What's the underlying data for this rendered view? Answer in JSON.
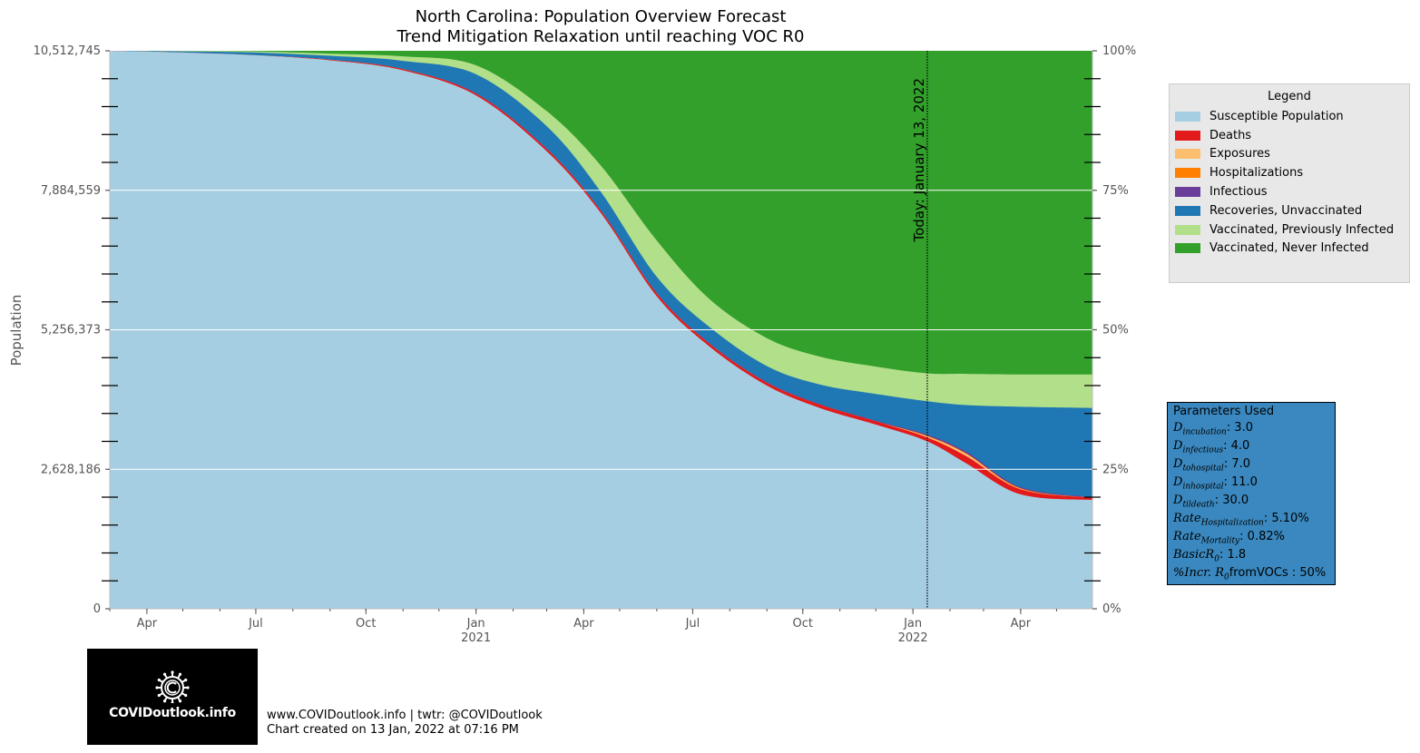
{
  "chart_data": {
    "type": "area",
    "title": "North Carolina: Population Overview Forecast",
    "subtitle": "Trend Mitigation Relaxation until reaching VOC R0",
    "ylabel": "Population",
    "ylim": [
      0,
      10512745
    ],
    "y_ticks": [
      "10,512,745",
      "7,884,559",
      "5,256,373",
      "2,628,186",
      "0"
    ],
    "y_ticks_right": [
      "100%",
      "75%",
      "50%",
      "25%",
      "0%"
    ],
    "x_ticks": [
      {
        "label": "Apr",
        "year": ""
      },
      {
        "label": "Jul",
        "year": ""
      },
      {
        "label": "Oct",
        "year": ""
      },
      {
        "label": "Jan",
        "year": "2021"
      },
      {
        "label": "Apr",
        "year": ""
      },
      {
        "label": "Jul",
        "year": ""
      },
      {
        "label": "Oct",
        "year": ""
      },
      {
        "label": "Jan",
        "year": "2022"
      },
      {
        "label": "Apr",
        "year": ""
      }
    ],
    "today_label": "Today: January 13, 2022",
    "grid": true,
    "legend_position": "right",
    "series_units": "percent of population (cumulative band tops)",
    "x": [
      "2020-03-01",
      "2020-05-01",
      "2020-07-01",
      "2020-09-01",
      "2020-11-01",
      "2021-01-01",
      "2021-03-01",
      "2021-04-15",
      "2021-06-01",
      "2021-07-15",
      "2021-09-01",
      "2021-10-15",
      "2021-12-01",
      "2022-01-13",
      "2022-02-15",
      "2022-04-01",
      "2022-05-31"
    ],
    "series": [
      {
        "name": "Susceptible Population",
        "color": "#a6cee3",
        "values": [
          100,
          99.7,
          99.2,
          98.3,
          96.5,
          92,
          82,
          71,
          56,
          47,
          40,
          36,
          33,
          30,
          26,
          20.5,
          19.5
        ]
      },
      {
        "name": "Deaths",
        "color": "#e31a1c",
        "values": [
          100,
          99.7,
          99.2,
          98.4,
          96.7,
          92.3,
          82.4,
          71.4,
          56.5,
          47.5,
          40.5,
          36.6,
          33.6,
          30.7,
          27.3,
          21.4,
          19.9
        ]
      },
      {
        "name": "Exposures",
        "color": "#fdbf6f",
        "values": [
          100,
          99.7,
          99.2,
          98.4,
          96.7,
          92.3,
          82.4,
          71.4,
          56.5,
          47.5,
          40.5,
          36.6,
          33.6,
          30.9,
          27.7,
          21.5,
          19.9
        ]
      },
      {
        "name": "Hospitalizations",
        "color": "#ff7f00",
        "values": [
          100,
          99.7,
          99.2,
          98.4,
          96.7,
          92.3,
          82.4,
          71.4,
          56.5,
          47.5,
          40.5,
          36.6,
          33.6,
          31.0,
          27.8,
          21.6,
          19.9
        ]
      },
      {
        "name": "Infectious",
        "color": "#6a3d9a",
        "values": [
          100,
          99.7,
          99.2,
          98.4,
          96.7,
          92.4,
          82.5,
          71.5,
          56.6,
          47.6,
          40.6,
          36.7,
          33.7,
          31.2,
          28.1,
          21.8,
          20.0
        ]
      },
      {
        "name": "Recoveries, Unvaccinated",
        "color": "#1f78b4",
        "values": [
          100,
          99.9,
          99.7,
          99.1,
          98.2,
          95.8,
          86.5,
          74.8,
          59.5,
          50.5,
          43.5,
          40.2,
          38.5,
          37.2,
          36.5,
          36.2,
          36.0
        ]
      },
      {
        "name": "Vaccinated, Previously Infected",
        "color": "#b2df8a",
        "values": [
          100,
          100,
          99.9,
          99.5,
          99,
          97.4,
          89.2,
          79.5,
          66,
          55.5,
          48.5,
          45.2,
          43.4,
          42.2,
          42.1,
          42.0,
          42.0
        ]
      },
      {
        "name": "Vaccinated, Never Infected",
        "color": "#33a02c",
        "values": [
          100,
          100,
          100,
          100,
          100,
          100,
          100,
          100,
          100,
          100,
          100,
          100,
          100,
          100,
          100,
          100,
          100
        ]
      }
    ]
  },
  "legend": {
    "title": "Legend",
    "items": [
      {
        "label": "Susceptible Population",
        "color": "#a6cee3"
      },
      {
        "label": "Deaths",
        "color": "#e31a1c"
      },
      {
        "label": "Exposures",
        "color": "#fdbf6f"
      },
      {
        "label": "Hospitalizations",
        "color": "#ff7f00"
      },
      {
        "label": "Infectious",
        "color": "#6a3d9a"
      },
      {
        "label": "Recoveries, Unvaccinated",
        "color": "#1f78b4"
      },
      {
        "label": "Vaccinated, Previously Infected",
        "color": "#b2df8a"
      },
      {
        "label": "Vaccinated, Never Infected",
        "color": "#33a02c"
      }
    ]
  },
  "params": {
    "title": "Parameters Used",
    "items": [
      {
        "name": "D",
        "sub": "incubation",
        "value": ": 3.0"
      },
      {
        "name": "D",
        "sub": "infectious",
        "value": ": 4.0"
      },
      {
        "name": "D",
        "sub": "tohospital",
        "value": ": 7.0"
      },
      {
        "name": "D",
        "sub": "inhospital",
        "value": ": 11.0"
      },
      {
        "name": "D",
        "sub": "tildeath",
        "value": ": 30.0"
      },
      {
        "name": "Rate",
        "sub": "Hospitalization",
        "value": ": 5.10%"
      },
      {
        "name": "Rate",
        "sub": "Mortality",
        "value": ": 0.82%"
      },
      {
        "name": "BasicR",
        "sub": "0",
        "value": ": 1.8"
      },
      {
        "name": "%Incr. R",
        "sub": "0",
        "value": "fromVOCs : 50%"
      }
    ]
  },
  "logo": {
    "text": "COVIDoutlook.info"
  },
  "footer": {
    "line1": "www.COVIDoutlook.info | twtr: @COVIDoutlook",
    "line2": "Chart created on 13 Jan, 2022 at 07:16 PM"
  }
}
